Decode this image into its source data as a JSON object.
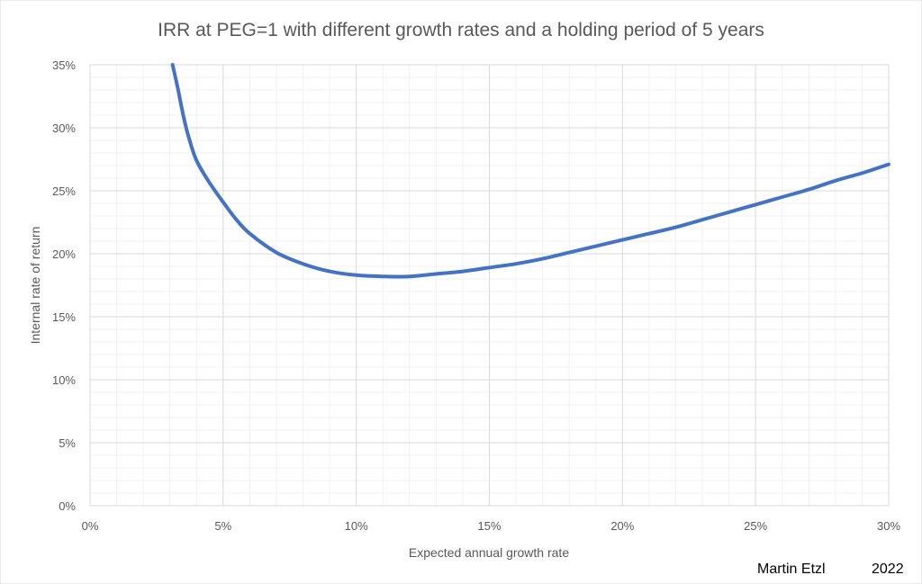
{
  "chart_data": {
    "type": "line",
    "title": "IRR at PEG=1 with different growth rates and a holding period of 5 years",
    "xlabel": "Expected annual growth rate",
    "ylabel": "Internal rate of return",
    "xlim": [
      0,
      30
    ],
    "ylim": [
      0,
      35
    ],
    "x_ticks": [
      "0%",
      "5%",
      "10%",
      "15%",
      "20%",
      "25%",
      "30%"
    ],
    "y_ticks": [
      "0%",
      "5%",
      "10%",
      "15%",
      "20%",
      "25%",
      "30%",
      "35%"
    ],
    "grid": true,
    "series": [
      {
        "name": "IRR",
        "color": "#4472C4",
        "x": [
          3.1,
          3.3,
          3.5,
          3.7,
          4.0,
          4.5,
          5.0,
          5.5,
          6.0,
          7.0,
          8.0,
          9.0,
          10.0,
          11.0,
          12.0,
          13.0,
          14.0,
          15.0,
          16.0,
          17.0,
          18.0,
          19.0,
          20.0,
          21.0,
          22.0,
          23.0,
          24.0,
          25.0,
          26.0,
          27.0,
          28.0,
          29.0,
          30.0
        ],
        "y": [
          35.0,
          33.1,
          31.0,
          29.3,
          27.4,
          25.6,
          24.1,
          22.7,
          21.6,
          20.1,
          19.2,
          18.6,
          18.3,
          18.2,
          18.2,
          18.4,
          18.6,
          18.9,
          19.2,
          19.6,
          20.1,
          20.6,
          21.1,
          21.6,
          22.1,
          22.7,
          23.3,
          23.9,
          24.5,
          25.1,
          25.8,
          26.4,
          27.1
        ]
      }
    ],
    "annotations": [
      "Martin Etzl",
      "2022"
    ]
  }
}
